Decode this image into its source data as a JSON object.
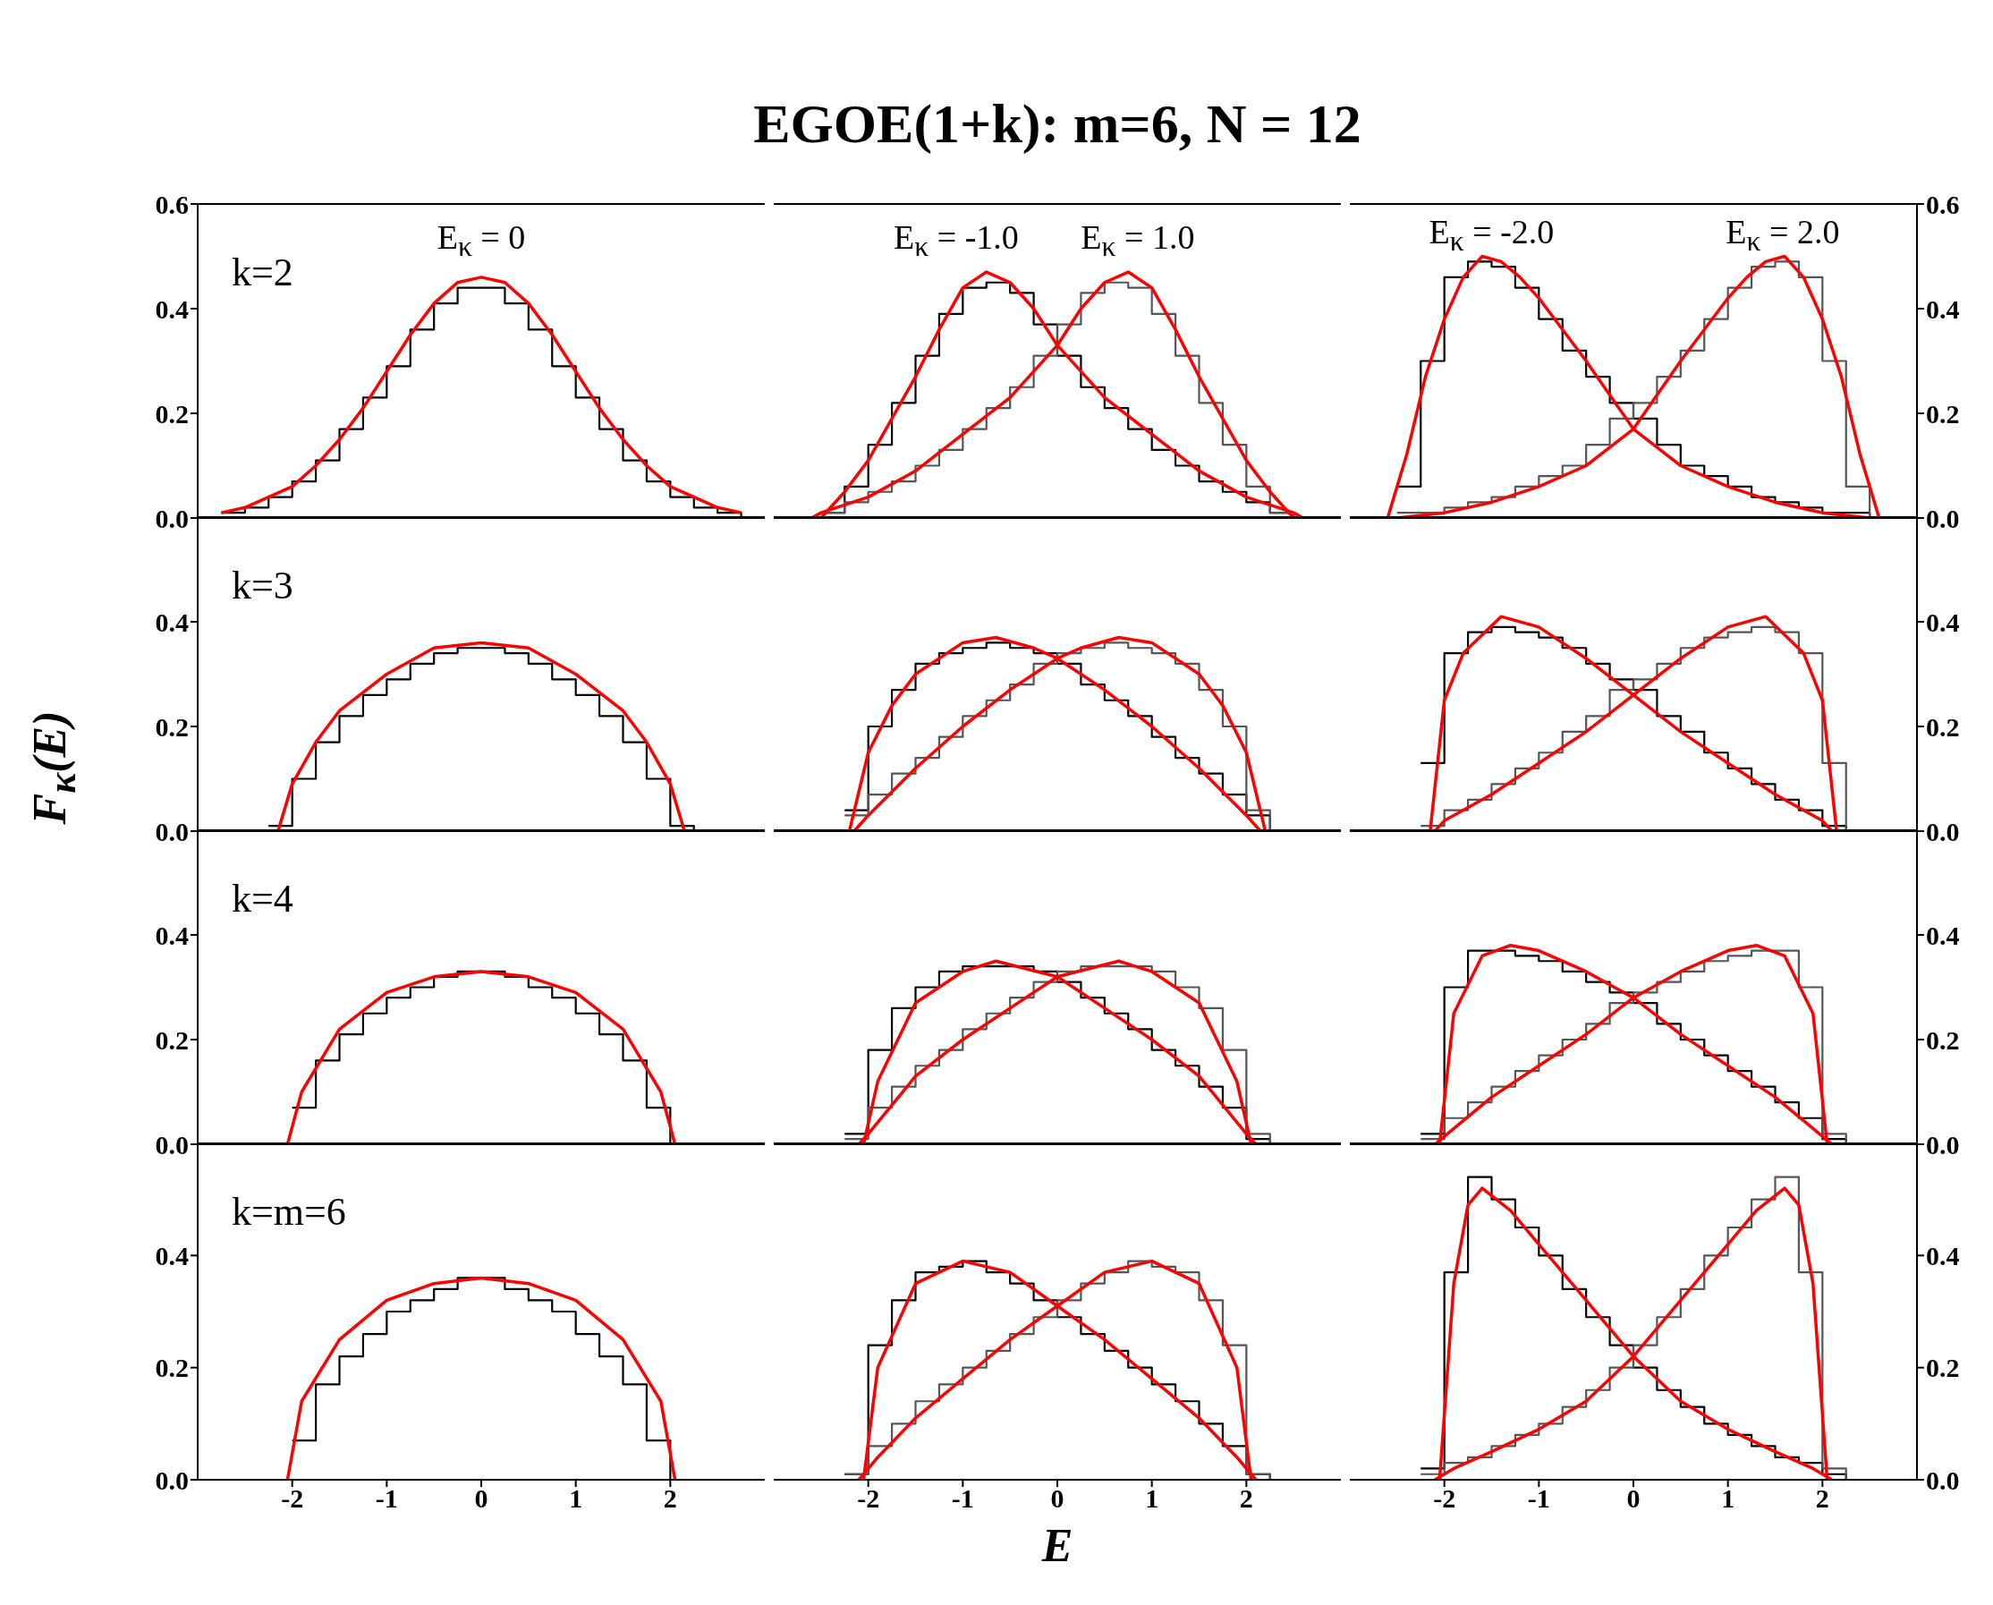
{
  "chart_data": [
    {
      "type": "line",
      "xlim": [
        -3,
        3
      ],
      "xticks": [
        -2,
        -1,
        0,
        1,
        2
      ],
      "ylim": [
        0,
        0.6
      ],
      "yticks": [
        {
          "value": 0,
          "label": "0.0"
        },
        {
          "value": 0.2,
          "label": "0.2"
        },
        {
          "value": 0.4,
          "label": "0.4"
        },
        {
          "value": 0.6,
          "label": "0.6"
        }
      ],
      "tick_labels": "y",
      "annotations": [
        "k=2",
        "E$_{κ}$ = 0"
      ],
      "series": [
        {
          "type": "step",
          "color": "#000000",
          "x": [
            -2.75,
            -2.5,
            -2.25,
            -2,
            -1.75,
            -1.5,
            -1.25,
            -1,
            -0.75,
            -0.5,
            -0.25,
            0,
            0.25,
            0.5,
            0.75,
            1,
            1.25,
            1.5,
            1.75,
            2,
            2.25,
            2.5,
            2.75
          ],
          "values": [
            0.01,
            0.02,
            0.04,
            0.07,
            0.11,
            0.17,
            0.23,
            0.29,
            0.36,
            0.41,
            0.44,
            0.44,
            0.41,
            0.36,
            0.29,
            0.23,
            0.17,
            0.11,
            0.07,
            0.04,
            0.02,
            0.01,
            0
          ]
        },
        {
          "color": "#ff0000",
          "x": [
            -2.75,
            -2.5,
            -2.25,
            -2,
            -1.75,
            -1.5,
            -1.25,
            -1,
            -0.75,
            -0.5,
            -0.25,
            0,
            0.25,
            0.5,
            0.75,
            1,
            1.25,
            1.5,
            1.75,
            2,
            2.25,
            2.5,
            2.75
          ],
          "values": [
            0.01,
            0.02,
            0.04,
            0.06,
            0.1,
            0.15,
            0.21,
            0.28,
            0.35,
            0.41,
            0.45,
            0.46,
            0.45,
            0.41,
            0.35,
            0.28,
            0.21,
            0.15,
            0.1,
            0.06,
            0.04,
            0.02,
            0.01
          ]
        }
      ]
    },
    {
      "type": "line",
      "title": "EGOE(1+k): m=6, N = 12",
      "xlim": [
        -3,
        3
      ],
      "xticks": [
        -2,
        -1,
        0,
        1,
        2
      ],
      "ylim": [
        0,
        0.6
      ],
      "tick_labels": false,
      "annotations": [
        "E$_{κ}$ = -1.0",
        "E$_{κ}$ = 1.0"
      ],
      "series": [
        {
          "type": "step",
          "color": "#000000",
          "x": [
            -2.5,
            -2.25,
            -2,
            -1.75,
            -1.5,
            -1.25,
            -1,
            -0.75,
            -0.5,
            -0.25,
            0,
            0.25,
            0.5,
            0.75,
            1,
            1.25,
            1.5,
            1.75,
            2,
            2.25,
            2.5
          ],
          "values": [
            0.01,
            0.06,
            0.14,
            0.22,
            0.31,
            0.39,
            0.44,
            0.45,
            0.43,
            0.37,
            0.31,
            0.25,
            0.21,
            0.17,
            0.13,
            0.1,
            0.07,
            0.05,
            0.03,
            0.01,
            0
          ]
        },
        {
          "type": "step",
          "color": "#555555",
          "x": [
            -2.5,
            -2.25,
            -2,
            -1.75,
            -1.5,
            -1.25,
            -1,
            -0.75,
            -0.5,
            -0.25,
            0,
            0.25,
            0.5,
            0.75,
            1,
            1.25,
            1.5,
            1.75,
            2,
            2.25,
            2.5
          ],
          "values": [
            0.01,
            0.03,
            0.05,
            0.07,
            0.1,
            0.13,
            0.17,
            0.21,
            0.25,
            0.31,
            0.37,
            0.43,
            0.45,
            0.44,
            0.39,
            0.31,
            0.22,
            0.14,
            0.06,
            0.01,
            0
          ]
        },
        {
          "color": "#ff0000",
          "x": [
            -2.5,
            -2.25,
            -2,
            -1.5,
            -1.25,
            -1,
            -0.75,
            -0.5,
            -0.25,
            0,
            0.25,
            0.5,
            1,
            1.5,
            2,
            2.5,
            2.6
          ],
          "values": [
            0,
            0.05,
            0.11,
            0.27,
            0.36,
            0.44,
            0.47,
            0.45,
            0.4,
            0.33,
            0.28,
            0.23,
            0.16,
            0.09,
            0.04,
            0.01,
            0
          ]
        },
        {
          "color": "#ff0000",
          "x": [
            -2.6,
            -2.5,
            -2,
            -1.5,
            -1,
            -0.5,
            -0.25,
            0,
            0.25,
            0.5,
            0.75,
            1,
            1.25,
            1.5,
            2,
            2.25,
            2.5
          ],
          "values": [
            0,
            0.01,
            0.04,
            0.09,
            0.16,
            0.23,
            0.28,
            0.33,
            0.4,
            0.45,
            0.47,
            0.44,
            0.36,
            0.27,
            0.11,
            0.05,
            0
          ]
        }
      ]
    },
    {
      "type": "line",
      "xlim": [
        -3,
        3
      ],
      "xticks": [
        -2,
        -1,
        0,
        1,
        2
      ],
      "ylim": [
        0,
        0.6
      ],
      "yticks": [
        {
          "value": 0,
          "label": "0.0"
        },
        {
          "value": 0.2,
          "label": "0.2"
        },
        {
          "value": 0.4,
          "label": "0.4"
        },
        {
          "value": 0.6,
          "label": "0.6"
        }
      ],
      "tick_labels": "y",
      "annotations": [
        "E$_{κ}$ = -2.0",
        "E$_{κ}$ = 2.0"
      ],
      "series": [
        {
          "type": "step",
          "color": "#000000",
          "x": [
            -2.5,
            -2.25,
            -2,
            -1.75,
            -1.5,
            -1.25,
            -1,
            -0.75,
            -0.5,
            -0.25,
            0,
            0.25,
            0.5,
            0.75,
            1,
            1.25,
            1.5,
            1.75,
            2,
            2.25,
            2.5
          ],
          "values": [
            0.06,
            0.3,
            0.46,
            0.49,
            0.48,
            0.44,
            0.38,
            0.32,
            0.27,
            0.22,
            0.19,
            0.14,
            0.1,
            0.08,
            0.06,
            0.04,
            0.03,
            0.02,
            0.01,
            0.01,
            0
          ]
        },
        {
          "type": "step",
          "color": "#555555",
          "x": [
            -2.5,
            -2.25,
            -2,
            -1.75,
            -1.5,
            -1.25,
            -1,
            -0.75,
            -0.5,
            -0.25,
            0,
            0.25,
            0.5,
            0.75,
            1,
            1.25,
            1.5,
            1.75,
            2,
            2.25,
            2.5
          ],
          "values": [
            0.01,
            0.01,
            0.02,
            0.03,
            0.04,
            0.06,
            0.08,
            0.1,
            0.14,
            0.19,
            0.22,
            0.27,
            0.32,
            0.38,
            0.44,
            0.48,
            0.49,
            0.46,
            0.3,
            0.06,
            0
          ]
        },
        {
          "color": "#ff0000",
          "x": [
            -2.6,
            -2.4,
            -2.2,
            -2,
            -1.8,
            -1.6,
            -1.4,
            -1.2,
            -1,
            -0.5,
            0,
            0.5,
            1,
            1.5,
            2,
            2.5
          ],
          "values": [
            0,
            0.12,
            0.27,
            0.38,
            0.46,
            0.5,
            0.49,
            0.46,
            0.42,
            0.3,
            0.17,
            0.1,
            0.06,
            0.03,
            0.01,
            0
          ]
        },
        {
          "color": "#ff0000",
          "x": [
            -2.5,
            -2,
            -1.5,
            -1,
            -0.5,
            0,
            0.5,
            1,
            1.2,
            1.4,
            1.6,
            1.8,
            2,
            2.2,
            2.4,
            2.6
          ],
          "values": [
            0,
            0.01,
            0.03,
            0.06,
            0.1,
            0.17,
            0.3,
            0.42,
            0.46,
            0.49,
            0.5,
            0.46,
            0.38,
            0.27,
            0.12,
            0
          ]
        }
      ]
    },
    {
      "type": "line",
      "ylabel": "F$_{κ}$(E)",
      "xlim": [
        -3,
        3
      ],
      "xticks": [
        -2,
        -1,
        0,
        1,
        2
      ],
      "ylim": [
        0,
        0.6
      ],
      "yticks": [
        {
          "value": 0,
          "label": "0.0"
        },
        {
          "value": 0.2,
          "label": "0.2"
        },
        {
          "value": 0.4,
          "label": "0.4"
        }
      ],
      "tick_labels": "y",
      "annotations": [
        "k=3"
      ],
      "series": [
        {
          "type": "step",
          "color": "#000000",
          "x": [
            -2.25,
            -2,
            -1.75,
            -1.5,
            -1.25,
            -1,
            -0.75,
            -0.5,
            -0.25,
            0,
            0.25,
            0.5,
            0.75,
            1,
            1.25,
            1.5,
            1.75,
            2,
            2.25
          ],
          "values": [
            0.01,
            0.1,
            0.17,
            0.22,
            0.26,
            0.29,
            0.32,
            0.34,
            0.35,
            0.35,
            0.34,
            0.32,
            0.29,
            0.26,
            0.22,
            0.17,
            0.1,
            0.01,
            0
          ]
        },
        {
          "color": "#ff0000",
          "x": [
            -2.15,
            -2,
            -1.75,
            -1.5,
            -1,
            -0.5,
            0,
            0.5,
            1,
            1.5,
            1.75,
            2,
            2.15
          ],
          "values": [
            0,
            0.09,
            0.17,
            0.23,
            0.3,
            0.35,
            0.36,
            0.35,
            0.3,
            0.23,
            0.17,
            0.09,
            0
          ]
        }
      ]
    },
    {
      "type": "line",
      "xlim": [
        -3,
        3
      ],
      "xticks": [
        -2,
        -1,
        0,
        1,
        2
      ],
      "ylim": [
        0,
        0.6
      ],
      "tick_labels": false,
      "series": [
        {
          "type": "step",
          "color": "#000000",
          "x": [
            -2.25,
            -2,
            -1.75,
            -1.5,
            -1.25,
            -1,
            -0.75,
            -0.5,
            -0.25,
            0,
            0.25,
            0.5,
            0.75,
            1,
            1.25,
            1.5,
            1.75,
            2,
            2.25
          ],
          "values": [
            0.04,
            0.2,
            0.27,
            0.32,
            0.34,
            0.35,
            0.36,
            0.35,
            0.34,
            0.32,
            0.28,
            0.25,
            0.22,
            0.18,
            0.14,
            0.11,
            0.07,
            0.03,
            0
          ]
        },
        {
          "type": "step",
          "color": "#555555",
          "x": [
            -2.25,
            -2,
            -1.75,
            -1.5,
            -1.25,
            -1,
            -0.75,
            -0.5,
            -0.25,
            0,
            0.25,
            0.5,
            0.75,
            1,
            1.25,
            1.5,
            1.75,
            2,
            2.25
          ],
          "values": [
            0.03,
            0.07,
            0.11,
            0.14,
            0.18,
            0.22,
            0.25,
            0.28,
            0.32,
            0.34,
            0.35,
            0.36,
            0.35,
            0.34,
            0.32,
            0.27,
            0.2,
            0.04,
            0
          ]
        },
        {
          "color": "#ff0000",
          "x": [
            -2.2,
            -2,
            -1.75,
            -1.5,
            -1,
            -0.65,
            -0.25,
            0,
            0.5,
            1,
            1.5,
            2,
            2.15
          ],
          "values": [
            0,
            0.15,
            0.24,
            0.3,
            0.36,
            0.37,
            0.35,
            0.33,
            0.27,
            0.2,
            0.12,
            0.03,
            0
          ]
        },
        {
          "color": "#ff0000",
          "x": [
            -2.15,
            -2,
            -1.5,
            -1,
            -0.5,
            0,
            0.25,
            0.65,
            1,
            1.5,
            1.75,
            2,
            2.2
          ],
          "values": [
            0,
            0.03,
            0.12,
            0.2,
            0.27,
            0.33,
            0.35,
            0.37,
            0.36,
            0.3,
            0.24,
            0.15,
            0
          ]
        }
      ]
    },
    {
      "type": "line",
      "xlim": [
        -3,
        3
      ],
      "xticks": [
        -2,
        -1,
        0,
        1,
        2
      ],
      "ylim": [
        0,
        0.6
      ],
      "yticks": [
        {
          "value": 0,
          "label": "0.0"
        },
        {
          "value": 0.2,
          "label": "0.2"
        },
        {
          "value": 0.4,
          "label": "0.4"
        }
      ],
      "tick_labels": "y",
      "series": [
        {
          "type": "step",
          "color": "#000000",
          "x": [
            -2.25,
            -2,
            -1.75,
            -1.5,
            -1.25,
            -1,
            -0.75,
            -0.5,
            -0.25,
            0,
            0.25,
            0.5,
            0.75,
            1,
            1.25,
            1.5,
            1.75,
            2,
            2.25
          ],
          "values": [
            0.13,
            0.34,
            0.38,
            0.39,
            0.38,
            0.37,
            0.35,
            0.32,
            0.29,
            0.27,
            0.22,
            0.19,
            0.15,
            0.12,
            0.09,
            0.06,
            0.04,
            0.01,
            0
          ]
        },
        {
          "type": "step",
          "color": "#555555",
          "x": [
            -2.25,
            -2,
            -1.75,
            -1.5,
            -1.25,
            -1,
            -0.75,
            -0.5,
            -0.25,
            0,
            0.25,
            0.5,
            0.75,
            1,
            1.25,
            1.5,
            1.75,
            2,
            2.25
          ],
          "values": [
            0.01,
            0.04,
            0.06,
            0.09,
            0.12,
            0.15,
            0.19,
            0.22,
            0.27,
            0.29,
            0.32,
            0.35,
            0.37,
            0.38,
            0.39,
            0.38,
            0.34,
            0.13,
            0
          ]
        },
        {
          "color": "#ff0000",
          "x": [
            -2.15,
            -2,
            -1.8,
            -1.4,
            -1,
            -0.5,
            0,
            0.5,
            1,
            1.5,
            2,
            2.1
          ],
          "values": [
            0,
            0.25,
            0.34,
            0.41,
            0.39,
            0.33,
            0.26,
            0.19,
            0.13,
            0.07,
            0.02,
            0
          ]
        },
        {
          "color": "#ff0000",
          "x": [
            -2.1,
            -2,
            -1.5,
            -1,
            -0.5,
            0,
            0.5,
            1,
            1.4,
            1.8,
            2,
            2.15
          ],
          "values": [
            0,
            0.02,
            0.07,
            0.13,
            0.19,
            0.26,
            0.33,
            0.39,
            0.41,
            0.34,
            0.25,
            0
          ]
        }
      ]
    },
    {
      "type": "line",
      "xlim": [
        -3,
        3
      ],
      "xticks": [
        -2,
        -1,
        0,
        1,
        2
      ],
      "ylim": [
        0,
        0.6
      ],
      "yticks": [
        {
          "value": 0,
          "label": "0.0"
        },
        {
          "value": 0.2,
          "label": "0.2"
        },
        {
          "value": 0.4,
          "label": "0.4"
        }
      ],
      "tick_labels": "y",
      "annotations": [
        "k=4"
      ],
      "series": [
        {
          "type": "step",
          "color": "#000000",
          "x": [
            -2,
            -1.75,
            -1.5,
            -1.25,
            -1,
            -0.75,
            -0.5,
            -0.25,
            0,
            0.25,
            0.5,
            0.75,
            1,
            1.25,
            1.5,
            1.75,
            2
          ],
          "values": [
            0.07,
            0.16,
            0.21,
            0.25,
            0.28,
            0.3,
            0.32,
            0.33,
            0.33,
            0.32,
            0.3,
            0.28,
            0.25,
            0.21,
            0.16,
            0.07,
            0
          ]
        },
        {
          "color": "#ff0000",
          "x": [
            -2.05,
            -1.9,
            -1.5,
            -1,
            -0.5,
            0,
            0.5,
            1,
            1.5,
            1.9,
            2.05
          ],
          "values": [
            0,
            0.1,
            0.22,
            0.29,
            0.32,
            0.33,
            0.32,
            0.29,
            0.22,
            0.1,
            0
          ]
        }
      ]
    },
    {
      "type": "line",
      "xlim": [
        -3,
        3
      ],
      "xticks": [
        -2,
        -1,
        0,
        1,
        2
      ],
      "ylim": [
        0,
        0.6
      ],
      "tick_labels": false,
      "series": [
        {
          "type": "step",
          "color": "#000000",
          "x": [
            -2.25,
            -2,
            -1.75,
            -1.5,
            -1.25,
            -1,
            -0.75,
            -0.5,
            -0.25,
            0,
            0.25,
            0.5,
            0.75,
            1,
            1.25,
            1.5,
            1.75,
            2,
            2.25
          ],
          "values": [
            0.02,
            0.18,
            0.26,
            0.3,
            0.33,
            0.34,
            0.34,
            0.34,
            0.33,
            0.31,
            0.28,
            0.25,
            0.22,
            0.18,
            0.15,
            0.11,
            0.07,
            0.01,
            0
          ]
        },
        {
          "type": "step",
          "color": "#555555",
          "x": [
            -2.25,
            -2,
            -1.75,
            -1.5,
            -1.25,
            -1,
            -0.75,
            -0.5,
            -0.25,
            0,
            0.25,
            0.5,
            0.75,
            1,
            1.25,
            1.5,
            1.75,
            2,
            2.25
          ],
          "values": [
            0.01,
            0.07,
            0.11,
            0.15,
            0.18,
            0.22,
            0.25,
            0.28,
            0.31,
            0.33,
            0.34,
            0.34,
            0.34,
            0.33,
            0.3,
            0.26,
            0.18,
            0.02,
            0
          ]
        },
        {
          "color": "#ff0000",
          "x": [
            -2.05,
            -1.9,
            -1.5,
            -1,
            -0.65,
            0,
            0.5,
            1,
            1.5,
            2,
            2.1
          ],
          "values": [
            0,
            0.12,
            0.27,
            0.33,
            0.35,
            0.32,
            0.26,
            0.2,
            0.13,
            0.02,
            0
          ]
        },
        {
          "color": "#ff0000",
          "x": [
            -2.1,
            -2,
            -1.5,
            -1,
            -0.5,
            0,
            0.65,
            1,
            1.5,
            1.9,
            2.05
          ],
          "values": [
            0,
            0.02,
            0.13,
            0.2,
            0.26,
            0.32,
            0.35,
            0.33,
            0.27,
            0.12,
            0
          ]
        }
      ]
    },
    {
      "type": "line",
      "xlim": [
        -3,
        3
      ],
      "xticks": [
        -2,
        -1,
        0,
        1,
        2
      ],
      "ylim": [
        0,
        0.6
      ],
      "yticks": [
        {
          "value": 0,
          "label": "0.0"
        },
        {
          "value": 0.2,
          "label": "0.2"
        },
        {
          "value": 0.4,
          "label": "0.4"
        }
      ],
      "tick_labels": "y",
      "series": [
        {
          "type": "step",
          "color": "#000000",
          "x": [
            -2.25,
            -2,
            -1.75,
            -1.5,
            -1.25,
            -1,
            -0.75,
            -0.5,
            -0.25,
            0,
            0.25,
            0.5,
            0.75,
            1,
            1.25,
            1.5,
            1.75,
            2,
            2.25
          ],
          "values": [
            0.02,
            0.3,
            0.37,
            0.37,
            0.36,
            0.35,
            0.33,
            0.31,
            0.29,
            0.27,
            0.23,
            0.2,
            0.17,
            0.14,
            0.11,
            0.08,
            0.05,
            0.01,
            0
          ]
        },
        {
          "type": "step",
          "color": "#555555",
          "x": [
            -2.25,
            -2,
            -1.75,
            -1.5,
            -1.25,
            -1,
            -0.75,
            -0.5,
            -0.25,
            0,
            0.25,
            0.5,
            0.75,
            1,
            1.25,
            1.5,
            1.75,
            2,
            2.25
          ],
          "values": [
            0.01,
            0.05,
            0.08,
            0.11,
            0.14,
            0.17,
            0.2,
            0.23,
            0.27,
            0.29,
            0.31,
            0.33,
            0.35,
            0.36,
            0.37,
            0.37,
            0.3,
            0.02,
            0
          ]
        },
        {
          "color": "#ff0000",
          "x": [
            -2.05,
            -1.9,
            -1.6,
            -1.3,
            -1,
            -0.5,
            0,
            0.5,
            1,
            1.5,
            1.9,
            2.1
          ],
          "values": [
            0,
            0.25,
            0.36,
            0.38,
            0.37,
            0.33,
            0.28,
            0.21,
            0.15,
            0.09,
            0.03,
            0
          ]
        },
        {
          "color": "#ff0000",
          "x": [
            -2.1,
            -1.9,
            -1.5,
            -1,
            -0.5,
            0,
            0.5,
            1,
            1.3,
            1.6,
            1.9,
            2.05
          ],
          "values": [
            0,
            0.03,
            0.09,
            0.15,
            0.21,
            0.28,
            0.33,
            0.37,
            0.38,
            0.36,
            0.25,
            0
          ]
        }
      ]
    },
    {
      "type": "line",
      "xlim": [
        -3,
        3
      ],
      "xticks": [
        -2,
        -1,
        0,
        1,
        2
      ],
      "ylim": [
        0,
        0.6
      ],
      "yticks": [
        {
          "value": 0,
          "label": "0.0"
        },
        {
          "value": 0.2,
          "label": "0.2"
        },
        {
          "value": 0.4,
          "label": "0.4"
        }
      ],
      "annotations": [
        "k=m=6"
      ],
      "series": [
        {
          "type": "step",
          "color": "#000000",
          "x": [
            -2,
            -1.75,
            -1.5,
            -1.25,
            -1,
            -0.75,
            -0.5,
            -0.25,
            0,
            0.25,
            0.5,
            0.75,
            1,
            1.25,
            1.5,
            1.75,
            2
          ],
          "values": [
            0.07,
            0.17,
            0.22,
            0.26,
            0.3,
            0.32,
            0.34,
            0.36,
            0.36,
            0.34,
            0.32,
            0.3,
            0.26,
            0.22,
            0.17,
            0.07,
            0
          ]
        },
        {
          "color": "#ff0000",
          "x": [
            -2.05,
            -1.9,
            -1.5,
            -1,
            -0.5,
            0,
            0.5,
            1,
            1.5,
            1.9,
            2.05
          ],
          "values": [
            0,
            0.14,
            0.25,
            0.32,
            0.35,
            0.36,
            0.35,
            0.32,
            0.25,
            0.14,
            0
          ]
        }
      ]
    },
    {
      "type": "line",
      "xlabel": "E",
      "xlim": [
        -3,
        3
      ],
      "xticks": [
        -2,
        -1,
        0,
        1,
        2
      ],
      "ylim": [
        0,
        0.6
      ],
      "tick_labels": "x",
      "series": [
        {
          "type": "step",
          "color": "#000000",
          "x": [
            -2.25,
            -2,
            -1.75,
            -1.5,
            -1.25,
            -1,
            -0.75,
            -0.5,
            -0.25,
            0,
            0.25,
            0.5,
            0.75,
            1,
            1.25,
            1.5,
            1.75,
            2,
            2.25
          ],
          "values": [
            0.01,
            0.24,
            0.32,
            0.37,
            0.38,
            0.39,
            0.37,
            0.35,
            0.32,
            0.29,
            0.26,
            0.23,
            0.2,
            0.17,
            0.14,
            0.1,
            0.06,
            0.01,
            0
          ]
        },
        {
          "type": "step",
          "color": "#555555",
          "x": [
            -2.25,
            -2,
            -1.75,
            -1.5,
            -1.25,
            -1,
            -0.75,
            -0.5,
            -0.25,
            0,
            0.25,
            0.5,
            0.75,
            1,
            1.25,
            1.5,
            1.75,
            2,
            2.25
          ],
          "values": [
            0.01,
            0.06,
            0.1,
            0.14,
            0.17,
            0.2,
            0.23,
            0.26,
            0.29,
            0.32,
            0.35,
            0.37,
            0.39,
            0.38,
            0.37,
            0.32,
            0.24,
            0.01,
            0
          ]
        },
        {
          "color": "#ff0000",
          "x": [
            -2.05,
            -1.9,
            -1.5,
            -1,
            -0.5,
            0,
            0.5,
            1,
            1.5,
            1.9,
            2.1
          ],
          "values": [
            0,
            0.2,
            0.35,
            0.39,
            0.37,
            0.31,
            0.25,
            0.18,
            0.11,
            0.04,
            0
          ]
        },
        {
          "color": "#ff0000",
          "x": [
            -2.1,
            -1.9,
            -1.5,
            -1,
            -0.5,
            0,
            0.5,
            1,
            1.5,
            1.9,
            2.05
          ],
          "values": [
            0,
            0.04,
            0.11,
            0.18,
            0.25,
            0.31,
            0.37,
            0.39,
            0.35,
            0.2,
            0
          ]
        }
      ]
    },
    {
      "type": "line",
      "xlim": [
        -3,
        3
      ],
      "xticks": [
        -2,
        -1,
        0,
        1,
        2
      ],
      "ylim": [
        0,
        0.6
      ],
      "yticks": [
        {
          "value": 0,
          "label": "0.0"
        },
        {
          "value": 0.2,
          "label": "0.2"
        },
        {
          "value": 0.4,
          "label": "0.4"
        }
      ],
      "series": [
        {
          "type": "step",
          "color": "#000000",
          "x": [
            -2.25,
            -2,
            -1.75,
            -1.5,
            -1.25,
            -1,
            -0.75,
            -0.5,
            -0.25,
            0,
            0.25,
            0.5,
            0.75,
            1,
            1.25,
            1.5,
            1.75,
            2,
            2.25
          ],
          "values": [
            0.02,
            0.37,
            0.54,
            0.5,
            0.45,
            0.4,
            0.34,
            0.29,
            0.24,
            0.2,
            0.16,
            0.13,
            0.1,
            0.08,
            0.06,
            0.04,
            0.03,
            0.01,
            0
          ]
        },
        {
          "type": "step",
          "color": "#555555",
          "x": [
            -2.25,
            -2,
            -1.75,
            -1.5,
            -1.25,
            -1,
            -0.75,
            -0.5,
            -0.25,
            0,
            0.25,
            0.5,
            0.75,
            1,
            1.25,
            1.5,
            1.75,
            2,
            2.25
          ],
          "values": [
            0.01,
            0.03,
            0.04,
            0.06,
            0.08,
            0.1,
            0.13,
            0.16,
            0.2,
            0.24,
            0.29,
            0.34,
            0.4,
            0.45,
            0.5,
            0.54,
            0.37,
            0.02,
            0
          ]
        },
        {
          "color": "#ff0000",
          "x": [
            -2.05,
            -1.9,
            -1.75,
            -1.6,
            -1.3,
            -1,
            -0.5,
            0,
            0.5,
            1,
            1.5,
            1.9,
            2.1
          ],
          "values": [
            0,
            0.35,
            0.49,
            0.52,
            0.48,
            0.42,
            0.32,
            0.22,
            0.14,
            0.09,
            0.05,
            0.02,
            0
          ]
        },
        {
          "color": "#ff0000",
          "x": [
            -2.1,
            -1.9,
            -1.5,
            -1,
            -0.5,
            0,
            0.5,
            1,
            1.3,
            1.6,
            1.75,
            1.9,
            2.05
          ],
          "values": [
            0,
            0.02,
            0.05,
            0.09,
            0.14,
            0.22,
            0.32,
            0.42,
            0.48,
            0.52,
            0.49,
            0.35,
            0
          ]
        }
      ]
    }
  ]
}
